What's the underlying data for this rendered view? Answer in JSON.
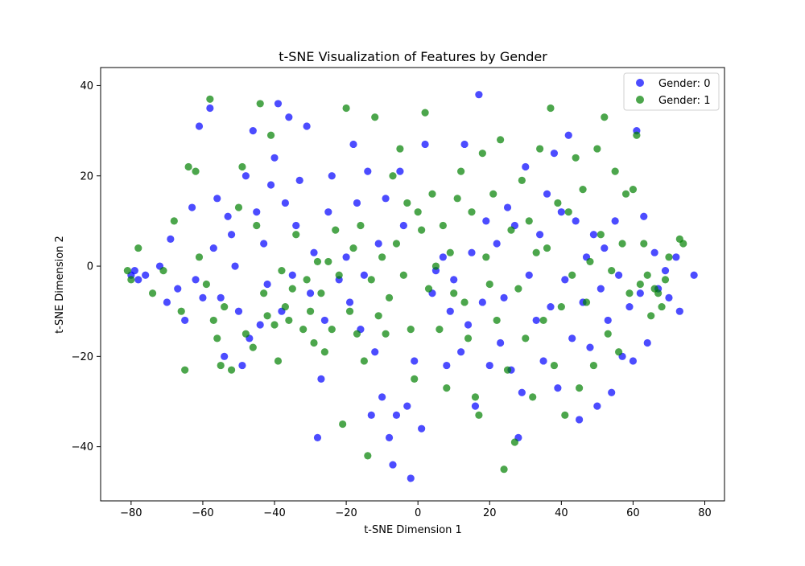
{
  "chart_data": {
    "type": "scatter",
    "title": "t-SNE Visualization of Features by Gender",
    "xlabel": "t-SNE Dimension 1",
    "ylabel": "t-SNE Dimension 2",
    "xlim": [
      -88.5,
      85.5
    ],
    "ylim": [
      -52,
      44
    ],
    "x_ticks": [
      -80,
      -60,
      -40,
      -20,
      0,
      20,
      40,
      60,
      80
    ],
    "y_ticks": [
      -40,
      -20,
      0,
      20,
      40
    ],
    "grid": false,
    "legend_position": "top-right",
    "series": [
      {
        "name": "Gender: 0",
        "color": "#0000ff",
        "points": [
          [
            -80,
            -2
          ],
          [
            -79,
            -1
          ],
          [
            -78,
            -3
          ],
          [
            -76,
            -2
          ],
          [
            -72,
            0
          ],
          [
            -70,
            -8
          ],
          [
            -69,
            6
          ],
          [
            -67,
            -5
          ],
          [
            -65,
            -12
          ],
          [
            -63,
            13
          ],
          [
            -62,
            -3
          ],
          [
            -61,
            31
          ],
          [
            -60,
            -7
          ],
          [
            -58,
            35
          ],
          [
            -57,
            4
          ],
          [
            -56,
            15
          ],
          [
            -55,
            -7
          ],
          [
            -54,
            -20
          ],
          [
            -53,
            11
          ],
          [
            -52,
            7
          ],
          [
            -51,
            0
          ],
          [
            -50,
            -10
          ],
          [
            -49,
            -22
          ],
          [
            -48,
            20
          ],
          [
            -47,
            -16
          ],
          [
            -46,
            30
          ],
          [
            -45,
            12
          ],
          [
            -44,
            -13
          ],
          [
            -43,
            5
          ],
          [
            -42,
            -4
          ],
          [
            -41,
            18
          ],
          [
            -40,
            24
          ],
          [
            -39,
            36
          ],
          [
            -38,
            -10
          ],
          [
            -37,
            14
          ],
          [
            -36,
            33
          ],
          [
            -35,
            -2
          ],
          [
            -34,
            9
          ],
          [
            -33,
            19
          ],
          [
            -31,
            31
          ],
          [
            -30,
            -6
          ],
          [
            -29,
            3
          ],
          [
            -28,
            -38
          ],
          [
            -27,
            -25
          ],
          [
            -26,
            -12
          ],
          [
            -25,
            12
          ],
          [
            -24,
            20
          ],
          [
            -22,
            -3
          ],
          [
            -20,
            2
          ],
          [
            -19,
            -8
          ],
          [
            -18,
            27
          ],
          [
            -17,
            14
          ],
          [
            -16,
            -14
          ],
          [
            -15,
            -2
          ],
          [
            -14,
            21
          ],
          [
            -13,
            -33
          ],
          [
            -12,
            -19
          ],
          [
            -11,
            5
          ],
          [
            -10,
            -29
          ],
          [
            -9,
            15
          ],
          [
            -8,
            -38
          ],
          [
            -7,
            -44
          ],
          [
            -6,
            -33
          ],
          [
            -5,
            21
          ],
          [
            -4,
            9
          ],
          [
            -3,
            -31
          ],
          [
            -2,
            -47
          ],
          [
            -1,
            -21
          ],
          [
            1,
            -36
          ],
          [
            2,
            27
          ],
          [
            4,
            -6
          ],
          [
            5,
            -1
          ],
          [
            7,
            2
          ],
          [
            8,
            -22
          ],
          [
            9,
            -10
          ],
          [
            10,
            -3
          ],
          [
            12,
            -19
          ],
          [
            13,
            27
          ],
          [
            14,
            -13
          ],
          [
            15,
            3
          ],
          [
            16,
            -31
          ],
          [
            17,
            38
          ],
          [
            18,
            -8
          ],
          [
            19,
            10
          ],
          [
            20,
            -22
          ],
          [
            22,
            5
          ],
          [
            23,
            -17
          ],
          [
            24,
            -7
          ],
          [
            25,
            13
          ],
          [
            26,
            -23
          ],
          [
            27,
            9
          ],
          [
            28,
            -38
          ],
          [
            29,
            -28
          ],
          [
            30,
            22
          ],
          [
            31,
            -2
          ],
          [
            33,
            -12
          ],
          [
            34,
            7
          ],
          [
            35,
            -21
          ],
          [
            36,
            16
          ],
          [
            37,
            -9
          ],
          [
            38,
            25
          ],
          [
            39,
            -27
          ],
          [
            40,
            12
          ],
          [
            41,
            -3
          ],
          [
            42,
            29
          ],
          [
            43,
            -16
          ],
          [
            44,
            10
          ],
          [
            45,
            -34
          ],
          [
            46,
            -8
          ],
          [
            47,
            2
          ],
          [
            48,
            -18
          ],
          [
            49,
            7
          ],
          [
            50,
            -31
          ],
          [
            51,
            -5
          ],
          [
            52,
            4
          ],
          [
            53,
            -12
          ],
          [
            54,
            -28
          ],
          [
            55,
            10
          ],
          [
            56,
            -2
          ],
          [
            57,
            -20
          ],
          [
            59,
            -9
          ],
          [
            60,
            -21
          ],
          [
            61,
            30
          ],
          [
            62,
            -6
          ],
          [
            63,
            11
          ],
          [
            64,
            -17
          ],
          [
            66,
            3
          ],
          [
            67,
            -5
          ],
          [
            69,
            -1
          ],
          [
            70,
            -7
          ],
          [
            72,
            2
          ],
          [
            73,
            -10
          ],
          [
            77,
            -2
          ]
        ]
      },
      {
        "name": "Gender: 1",
        "color": "#008000",
        "points": [
          [
            -81,
            -1
          ],
          [
            -80,
            -3
          ],
          [
            -78,
            4
          ],
          [
            -74,
            -6
          ],
          [
            -71,
            -1
          ],
          [
            -68,
            10
          ],
          [
            -66,
            -10
          ],
          [
            -65,
            -23
          ],
          [
            -64,
            22
          ],
          [
            -62,
            21
          ],
          [
            -61,
            2
          ],
          [
            -59,
            -4
          ],
          [
            -58,
            37
          ],
          [
            -57,
            -12
          ],
          [
            -56,
            -16
          ],
          [
            -55,
            -22
          ],
          [
            -54,
            -9
          ],
          [
            -52,
            -23
          ],
          [
            -50,
            13
          ],
          [
            -49,
            22
          ],
          [
            -48,
            -15
          ],
          [
            -46,
            -18
          ],
          [
            -45,
            9
          ],
          [
            -44,
            36
          ],
          [
            -43,
            -6
          ],
          [
            -42,
            -11
          ],
          [
            -41,
            29
          ],
          [
            -40,
            -13
          ],
          [
            -39,
            -21
          ],
          [
            -38,
            -1
          ],
          [
            -37,
            -9
          ],
          [
            -36,
            -12
          ],
          [
            -35,
            -5
          ],
          [
            -34,
            7
          ],
          [
            -32,
            -14
          ],
          [
            -31,
            -3
          ],
          [
            -30,
            -10
          ],
          [
            -29,
            -17
          ],
          [
            -28,
            1
          ],
          [
            -27,
            -6
          ],
          [
            -26,
            -19
          ],
          [
            -25,
            1
          ],
          [
            -24,
            -14
          ],
          [
            -23,
            8
          ],
          [
            -22,
            -2
          ],
          [
            -21,
            -35
          ],
          [
            -20,
            35
          ],
          [
            -19,
            -10
          ],
          [
            -18,
            4
          ],
          [
            -17,
            -15
          ],
          [
            -16,
            9
          ],
          [
            -15,
            -21
          ],
          [
            -14,
            -42
          ],
          [
            -13,
            -3
          ],
          [
            -12,
            33
          ],
          [
            -11,
            -11
          ],
          [
            -10,
            2
          ],
          [
            -9,
            -15
          ],
          [
            -8,
            -7
          ],
          [
            -7,
            20
          ],
          [
            -6,
            5
          ],
          [
            -5,
            26
          ],
          [
            -4,
            -2
          ],
          [
            -3,
            14
          ],
          [
            -2,
            -14
          ],
          [
            -1,
            -25
          ],
          [
            0,
            12
          ],
          [
            1,
            8
          ],
          [
            2,
            34
          ],
          [
            3,
            -5
          ],
          [
            4,
            16
          ],
          [
            5,
            0
          ],
          [
            6,
            -14
          ],
          [
            7,
            9
          ],
          [
            8,
            -27
          ],
          [
            9,
            3
          ],
          [
            10,
            -6
          ],
          [
            11,
            15
          ],
          [
            12,
            21
          ],
          [
            13,
            -8
          ],
          [
            14,
            -16
          ],
          [
            15,
            12
          ],
          [
            16,
            -29
          ],
          [
            17,
            -33
          ],
          [
            18,
            25
          ],
          [
            19,
            2
          ],
          [
            20,
            -4
          ],
          [
            21,
            16
          ],
          [
            22,
            -12
          ],
          [
            23,
            28
          ],
          [
            24,
            -45
          ],
          [
            25,
            -23
          ],
          [
            26,
            8
          ],
          [
            27,
            -39
          ],
          [
            28,
            -5
          ],
          [
            29,
            19
          ],
          [
            30,
            -16
          ],
          [
            31,
            10
          ],
          [
            32,
            -29
          ],
          [
            33,
            3
          ],
          [
            34,
            26
          ],
          [
            35,
            -12
          ],
          [
            36,
            4
          ],
          [
            37,
            35
          ],
          [
            38,
            -22
          ],
          [
            39,
            14
          ],
          [
            40,
            -9
          ],
          [
            41,
            -33
          ],
          [
            42,
            12
          ],
          [
            43,
            -2
          ],
          [
            44,
            24
          ],
          [
            45,
            -27
          ],
          [
            46,
            17
          ],
          [
            47,
            -8
          ],
          [
            48,
            1
          ],
          [
            49,
            -22
          ],
          [
            50,
            26
          ],
          [
            51,
            7
          ],
          [
            52,
            33
          ],
          [
            53,
            -15
          ],
          [
            54,
            -1
          ],
          [
            55,
            21
          ],
          [
            56,
            -19
          ],
          [
            57,
            5
          ],
          [
            58,
            16
          ],
          [
            59,
            -6
          ],
          [
            60,
            17
          ],
          [
            61,
            29
          ],
          [
            62,
            -4
          ],
          [
            63,
            5
          ],
          [
            64,
            -2
          ],
          [
            65,
            -11
          ],
          [
            66,
            -5
          ],
          [
            67,
            -6
          ],
          [
            68,
            -9
          ],
          [
            69,
            -3
          ],
          [
            70,
            2
          ],
          [
            73,
            6
          ],
          [
            74,
            5
          ]
        ]
      }
    ]
  }
}
